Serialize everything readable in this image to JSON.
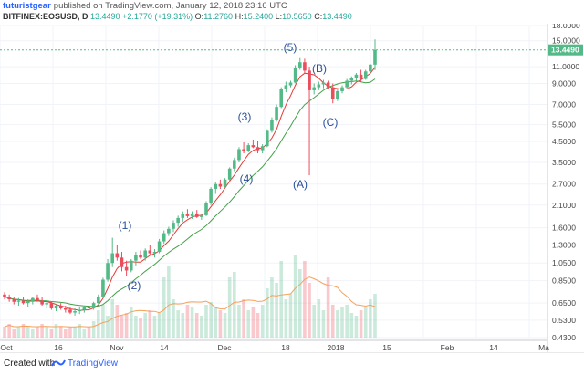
{
  "header": {
    "author": "futuristgear",
    "published": "published on TradingView.com, January 12, 2018 23:16 UTC",
    "symbol": "BITFINEX:EOSUSD, D",
    "last": "13.4490",
    "change": "+2.1770 (+19.31%)",
    "open_label": "O:",
    "open": "11.2760",
    "high_label": "H:",
    "high": "15.2400",
    "low_label": "L:",
    "low": "10.5650",
    "close_label": "C:",
    "close": "13.4490"
  },
  "footer": {
    "created": "Created with",
    "brand": "TradingView"
  },
  "chart_data": {
    "type": "candlestick",
    "price_axis": [
      "18.0000",
      "15.0000",
      "11.0000",
      "9.0000",
      "7.0000",
      "5.5000",
      "4.5000",
      "3.5000",
      "2.7000",
      "2.1000",
      "1.6000",
      "1.3000",
      "1.0500",
      "0.8500",
      "0.6500",
      "0.5300",
      "0.4300"
    ],
    "last_price_label": "13.4490",
    "time_axis": [
      "Oct",
      "16",
      "Nov",
      "14",
      "Dec",
      "18",
      "2018",
      "15",
      "Feb",
      "14",
      "Ma"
    ],
    "annotations": [
      "(1)",
      "(2)",
      "(3)",
      "(4)",
      "(5)",
      "(A)",
      "(B)",
      "(C)"
    ],
    "colors": {
      "up": "#53b987",
      "down": "#eb4d5c",
      "ma_fast": "#e53935",
      "ma_slow": "#43a047",
      "volume_ma": "#f5a15b",
      "label": "#2a4f9a"
    },
    "ohlc_approx": [
      [
        0.72,
        0.74,
        0.68,
        0.7
      ],
      [
        0.7,
        0.72,
        0.66,
        0.68
      ],
      [
        0.68,
        0.7,
        0.64,
        0.66
      ],
      [
        0.66,
        0.69,
        0.63,
        0.67
      ],
      [
        0.67,
        0.7,
        0.64,
        0.65
      ],
      [
        0.65,
        0.68,
        0.62,
        0.66
      ],
      [
        0.66,
        0.7,
        0.64,
        0.69
      ],
      [
        0.69,
        0.72,
        0.66,
        0.67
      ],
      [
        0.67,
        0.7,
        0.63,
        0.64
      ],
      [
        0.64,
        0.67,
        0.61,
        0.65
      ],
      [
        0.65,
        0.66,
        0.6,
        0.61
      ],
      [
        0.61,
        0.64,
        0.59,
        0.63
      ],
      [
        0.63,
        0.65,
        0.6,
        0.61
      ],
      [
        0.61,
        0.63,
        0.58,
        0.6
      ],
      [
        0.6,
        0.62,
        0.57,
        0.58
      ],
      [
        0.58,
        0.61,
        0.56,
        0.59
      ],
      [
        0.59,
        0.62,
        0.57,
        0.6
      ],
      [
        0.6,
        0.63,
        0.58,
        0.62
      ],
      [
        0.62,
        0.64,
        0.59,
        0.61
      ],
      [
        0.61,
        0.66,
        0.6,
        0.65
      ],
      [
        0.65,
        0.72,
        0.64,
        0.7
      ],
      [
        0.7,
        0.88,
        0.69,
        0.86
      ],
      [
        0.86,
        1.1,
        0.84,
        1.05
      ],
      [
        1.05,
        1.42,
        1.0,
        1.18
      ],
      [
        1.18,
        1.3,
        1.08,
        1.12
      ],
      [
        1.12,
        1.2,
        0.95,
        1.0
      ],
      [
        1.0,
        1.08,
        0.9,
        0.96
      ],
      [
        0.96,
        1.1,
        0.94,
        1.08
      ],
      [
        1.08,
        1.2,
        1.02,
        1.15
      ],
      [
        1.15,
        1.22,
        1.1,
        1.12
      ],
      [
        1.12,
        1.25,
        1.08,
        1.22
      ],
      [
        1.22,
        1.3,
        1.15,
        1.18
      ],
      [
        1.18,
        1.24,
        1.12,
        1.2
      ],
      [
        1.2,
        1.4,
        1.18,
        1.36
      ],
      [
        1.36,
        1.55,
        1.32,
        1.5
      ],
      [
        1.5,
        1.62,
        1.45,
        1.58
      ],
      [
        1.58,
        1.75,
        1.52,
        1.7
      ],
      [
        1.7,
        1.85,
        1.62,
        1.8
      ],
      [
        1.8,
        1.95,
        1.72,
        1.88
      ],
      [
        1.88,
        2.0,
        1.8,
        1.84
      ],
      [
        1.84,
        1.95,
        1.78,
        1.9
      ],
      [
        1.9,
        1.98,
        1.8,
        1.82
      ],
      [
        1.82,
        1.9,
        1.76,
        1.86
      ],
      [
        1.86,
        2.2,
        1.84,
        2.15
      ],
      [
        2.15,
        2.6,
        2.1,
        2.55
      ],
      [
        2.55,
        2.75,
        2.4,
        2.7
      ],
      [
        2.7,
        2.85,
        2.55,
        2.62
      ],
      [
        2.62,
        2.9,
        2.58,
        2.85
      ],
      [
        2.85,
        3.3,
        2.8,
        3.25
      ],
      [
        3.25,
        3.7,
        3.15,
        3.6
      ],
      [
        3.6,
        4.2,
        3.5,
        4.1
      ],
      [
        4.1,
        4.45,
        3.9,
        4.0
      ],
      [
        4.0,
        4.4,
        3.95,
        4.3
      ],
      [
        4.3,
        4.6,
        4.15,
        4.2
      ],
      [
        4.2,
        4.5,
        3.9,
        4.05
      ],
      [
        4.05,
        4.35,
        3.9,
        4.25
      ],
      [
        4.25,
        5.2,
        4.2,
        5.1
      ],
      [
        5.1,
        6.0,
        5.0,
        5.8
      ],
      [
        5.8,
        7.0,
        5.7,
        6.8
      ],
      [
        6.8,
        8.6,
        6.7,
        8.4
      ],
      [
        8.4,
        9.2,
        8.1,
        8.8
      ],
      [
        8.8,
        9.3,
        8.6,
        9.1
      ],
      [
        9.1,
        11.2,
        9.0,
        10.9
      ],
      [
        10.9,
        12.2,
        10.6,
        11.6
      ],
      [
        11.6,
        12.1,
        10.2,
        10.5
      ],
      [
        10.5,
        11.0,
        3.0,
        8.3
      ],
      [
        8.3,
        9.0,
        7.9,
        8.6
      ],
      [
        8.6,
        9.2,
        8.3,
        8.9
      ],
      [
        8.9,
        9.4,
        8.5,
        9.1
      ],
      [
        9.1,
        9.3,
        8.4,
        8.6
      ],
      [
        8.6,
        9.0,
        7.1,
        7.5
      ],
      [
        7.5,
        8.4,
        7.3,
        8.2
      ],
      [
        8.2,
        8.8,
        8.0,
        8.6
      ],
      [
        8.6,
        9.5,
        8.5,
        9.3
      ],
      [
        9.3,
        9.8,
        8.9,
        9.6
      ],
      [
        9.6,
        10.2,
        9.3,
        10.0
      ],
      [
        10.0,
        10.6,
        9.2,
        9.5
      ],
      [
        9.5,
        10.6,
        9.4,
        10.4
      ],
      [
        10.4,
        11.4,
        10.2,
        11.28
      ],
      [
        11.276,
        15.24,
        10.565,
        13.449
      ]
    ],
    "volume_approx": [
      4,
      5,
      3,
      4,
      5,
      4,
      3,
      4,
      5,
      4,
      3,
      5,
      4,
      3,
      4,
      4,
      5,
      3,
      4,
      6,
      10,
      12,
      8,
      14,
      12,
      8,
      9,
      11,
      8,
      7,
      9,
      10,
      8,
      9,
      22,
      26,
      14,
      10,
      9,
      12,
      11,
      9,
      8,
      12,
      13,
      11,
      10,
      9,
      22,
      24,
      12,
      14,
      10,
      11,
      9,
      12,
      18,
      22,
      20,
      28,
      14,
      16,
      30,
      25,
      28,
      20,
      12,
      14,
      10,
      22,
      12,
      10,
      11,
      12,
      9,
      8,
      10,
      11,
      14,
      16
    ]
  }
}
